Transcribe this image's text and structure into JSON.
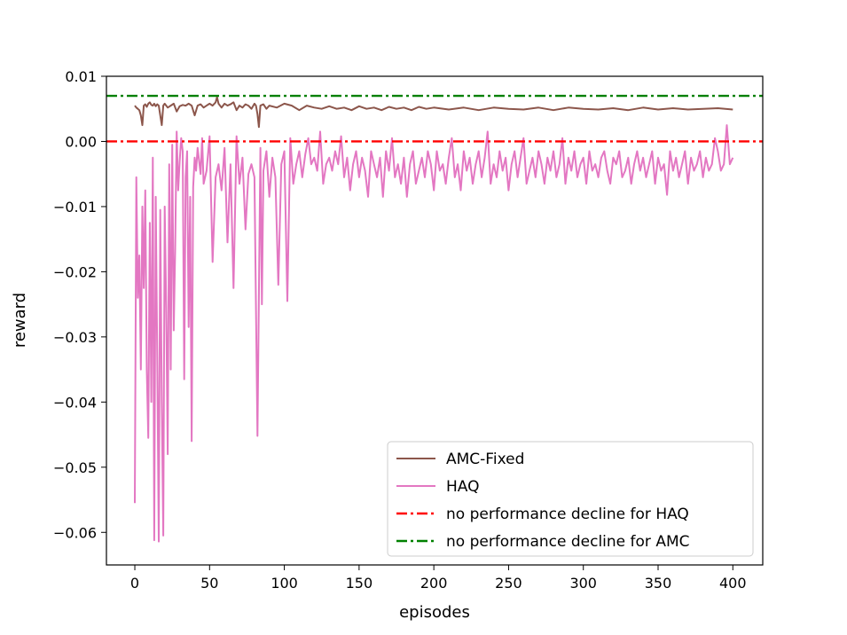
{
  "chart_data": {
    "type": "line",
    "title": "",
    "xlabel": "episodes",
    "ylabel": "reward",
    "xlim": [
      -19,
      420
    ],
    "ylim": [
      -0.065,
      0.01
    ],
    "xticks": [
      0,
      50,
      100,
      150,
      200,
      250,
      300,
      350,
      400
    ],
    "xtick_labels": [
      "0",
      "50",
      "100",
      "150",
      "200",
      "250",
      "300",
      "350",
      "400"
    ],
    "yticks": [
      0.01,
      0.0,
      -0.01,
      -0.02,
      -0.03,
      -0.04,
      -0.05,
      -0.06
    ],
    "ytick_labels": [
      "0.01",
      "0.00",
      "−0.01",
      "−0.02",
      "−0.03",
      "−0.04",
      "−0.05",
      "−0.06"
    ],
    "grid": false,
    "legend_position": "lower-right",
    "series": [
      {
        "name": "AMC-Fixed",
        "color": "#8c564b",
        "style": "solid",
        "x": [
          0,
          1,
          2,
          3,
          4,
          5,
          6,
          7,
          8,
          9,
          10,
          11,
          12,
          13,
          14,
          15,
          16,
          17,
          18,
          19,
          20,
          22,
          24,
          26,
          28,
          30,
          32,
          34,
          36,
          38,
          40,
          42,
          44,
          46,
          48,
          50,
          52,
          54,
          55,
          56,
          58,
          60,
          62,
          64,
          66,
          68,
          70,
          72,
          74,
          76,
          78,
          80,
          81,
          82,
          83,
          84,
          86,
          88,
          90,
          95,
          100,
          105,
          110,
          115,
          120,
          125,
          130,
          135,
          140,
          145,
          150,
          155,
          160,
          165,
          170,
          175,
          180,
          185,
          190,
          195,
          200,
          210,
          220,
          230,
          240,
          250,
          260,
          270,
          280,
          290,
          300,
          310,
          320,
          330,
          340,
          350,
          360,
          370,
          380,
          390,
          400
        ],
        "y": [
          0.0055,
          0.0052,
          0.005,
          0.0048,
          0.004,
          0.0025,
          0.0055,
          0.0057,
          0.0053,
          0.0058,
          0.006,
          0.0056,
          0.0055,
          0.0058,
          0.0054,
          0.0057,
          0.0055,
          0.004,
          0.0025,
          0.0055,
          0.0058,
          0.0052,
          0.0055,
          0.0058,
          0.0046,
          0.0054,
          0.0056,
          0.0055,
          0.0058,
          0.0055,
          0.004,
          0.0055,
          0.0057,
          0.0052,
          0.0055,
          0.0058,
          0.0055,
          0.006,
          0.0068,
          0.0058,
          0.0052,
          0.0058,
          0.0055,
          0.0057,
          0.006,
          0.0048,
          0.0055,
          0.0052,
          0.0057,
          0.0055,
          0.005,
          0.0058,
          0.0055,
          0.0042,
          0.0022,
          0.0055,
          0.0057,
          0.005,
          0.0055,
          0.0052,
          0.0058,
          0.0055,
          0.0048,
          0.0055,
          0.0052,
          0.005,
          0.0054,
          0.005,
          0.0052,
          0.0048,
          0.0054,
          0.005,
          0.0052,
          0.0048,
          0.0053,
          0.005,
          0.0052,
          0.0048,
          0.0053,
          0.005,
          0.0052,
          0.0049,
          0.0052,
          0.0048,
          0.0052,
          0.005,
          0.0049,
          0.0052,
          0.0048,
          0.0052,
          0.005,
          0.0049,
          0.0051,
          0.0048,
          0.0052,
          0.0049,
          0.0051,
          0.0049,
          0.005,
          0.0051,
          0.0049
        ]
      },
      {
        "name": "HAQ",
        "color": "#e377c2",
        "style": "solid",
        "x": [
          0,
          1,
          2,
          3,
          4,
          5,
          6,
          7,
          8,
          9,
          10,
          11,
          12,
          13,
          14,
          15,
          16,
          17,
          18,
          19,
          20,
          21,
          22,
          23,
          24,
          25,
          26,
          27,
          28,
          29,
          30,
          31,
          32,
          33,
          34,
          35,
          36,
          37,
          38,
          39,
          40,
          41,
          42,
          43,
          44,
          45,
          46,
          48,
          50,
          52,
          54,
          56,
          58,
          60,
          62,
          64,
          66,
          68,
          70,
          72,
          74,
          76,
          78,
          80,
          82,
          84,
          85,
          86,
          88,
          90,
          92,
          94,
          96,
          98,
          100,
          102,
          104,
          106,
          108,
          110,
          112,
          114,
          116,
          118,
          120,
          122,
          124,
          126,
          128,
          130,
          132,
          134,
          136,
          138,
          140,
          142,
          144,
          146,
          148,
          150,
          152,
          154,
          156,
          158,
          160,
          162,
          164,
          166,
          168,
          170,
          172,
          174,
          176,
          178,
          180,
          182,
          184,
          186,
          188,
          190,
          192,
          194,
          196,
          198,
          200,
          202,
          204,
          206,
          208,
          210,
          212,
          214,
          216,
          218,
          220,
          222,
          224,
          226,
          228,
          230,
          232,
          234,
          236,
          238,
          240,
          242,
          244,
          246,
          248,
          250,
          252,
          254,
          256,
          258,
          260,
          262,
          264,
          266,
          268,
          270,
          272,
          274,
          276,
          278,
          280,
          282,
          284,
          286,
          288,
          290,
          292,
          294,
          296,
          298,
          300,
          302,
          304,
          306,
          308,
          310,
          312,
          314,
          316,
          318,
          320,
          322,
          324,
          326,
          328,
          330,
          332,
          334,
          336,
          338,
          340,
          342,
          344,
          346,
          348,
          350,
          352,
          354,
          356,
          358,
          360,
          362,
          364,
          366,
          368,
          370,
          372,
          374,
          376,
          378,
          380,
          382,
          384,
          386,
          388,
          390,
          392,
          394,
          396,
          398,
          400
        ],
        "y": [
          -0.0555,
          -0.0055,
          -0.024,
          -0.0175,
          -0.035,
          -0.01,
          -0.0225,
          -0.0075,
          -0.035,
          -0.0455,
          -0.0125,
          -0.04,
          -0.0025,
          -0.0612,
          -0.0085,
          -0.033,
          -0.0614,
          -0.0105,
          -0.04,
          -0.0605,
          -0.01,
          -0.0255,
          -0.048,
          -0.0035,
          -0.035,
          -0.0005,
          -0.029,
          -0.0165,
          0.0015,
          -0.0075,
          -0.003,
          0.0005,
          -0.0015,
          -0.0365,
          -0.0055,
          -0.0015,
          -0.0285,
          -0.0085,
          -0.046,
          -0.007,
          -0.0025,
          -0.0045,
          -0.001,
          -0.003,
          -0.005,
          0.0005,
          -0.0065,
          -0.0045,
          0.0008,
          -0.0185,
          -0.0055,
          -0.0035,
          -0.0075,
          -0.001,
          -0.0155,
          -0.0035,
          -0.0225,
          0.0008,
          -0.0065,
          -0.0025,
          -0.0135,
          -0.005,
          -0.0035,
          -0.0055,
          -0.0452,
          -0.001,
          -0.025,
          -0.0045,
          -0.0015,
          -0.0085,
          -0.0025,
          -0.0055,
          -0.022,
          -0.0035,
          -0.0015,
          -0.0245,
          0.0005,
          -0.0065,
          -0.0035,
          -0.0015,
          -0.0055,
          -0.002,
          0.0005,
          -0.0035,
          -0.0025,
          -0.0045,
          0.0015,
          -0.0065,
          -0.0035,
          -0.0025,
          -0.0045,
          -0.0015,
          -0.0035,
          0.0008,
          -0.0055,
          -0.0025,
          -0.0075,
          -0.0035,
          -0.0015,
          -0.0055,
          -0.0025,
          -0.0045,
          -0.0085,
          -0.0015,
          -0.0035,
          -0.0055,
          -0.0025,
          -0.0085,
          -0.0015,
          -0.0045,
          0.0005,
          -0.0055,
          -0.0035,
          -0.0065,
          -0.0025,
          -0.0085,
          -0.0035,
          -0.0015,
          -0.0065,
          -0.0045,
          -0.0025,
          -0.0055,
          -0.0015,
          -0.0035,
          -0.0075,
          -0.0015,
          -0.0045,
          -0.0035,
          -0.0065,
          -0.0025,
          0.0005,
          -0.0055,
          -0.0035,
          -0.0075,
          -0.0015,
          -0.0045,
          -0.0025,
          -0.0065,
          -0.0035,
          -0.0015,
          -0.0055,
          -0.0025,
          0.0015,
          -0.0065,
          -0.0035,
          -0.0055,
          -0.0015,
          -0.0045,
          -0.0025,
          -0.0075,
          -0.0035,
          -0.0015,
          -0.0055,
          -0.0025,
          0.0005,
          -0.0065,
          -0.0045,
          -0.0025,
          -0.0055,
          -0.0015,
          -0.0035,
          -0.0065,
          -0.0025,
          -0.0045,
          -0.0015,
          -0.0055,
          -0.0035,
          0.0005,
          -0.0065,
          -0.0025,
          -0.0045,
          -0.0015,
          -0.0055,
          -0.0035,
          -0.0025,
          -0.0065,
          -0.0015,
          -0.0045,
          -0.0035,
          -0.0055,
          -0.0025,
          -0.0015,
          -0.0045,
          -0.0065,
          -0.0025,
          -0.0035,
          -0.0015,
          -0.0055,
          -0.0045,
          -0.0025,
          -0.0065,
          -0.0035,
          -0.0015,
          -0.0045,
          -0.0025,
          -0.0055,
          -0.0035,
          -0.0015,
          -0.0065,
          -0.0025,
          -0.0045,
          -0.0035,
          -0.0082,
          -0.0015,
          -0.0045,
          -0.0025,
          -0.0055,
          -0.0035,
          -0.0015,
          -0.0065,
          -0.0025,
          -0.0045,
          -0.0035,
          -0.0015,
          -0.0055,
          -0.0025,
          -0.0045,
          -0.0035,
          0.0005,
          -0.0015,
          -0.0045,
          -0.0035,
          0.0025,
          -0.0035,
          -0.0025
        ]
      },
      {
        "name": "no performance decline for HAQ",
        "color": "#ff0000",
        "style": "dashdot",
        "y_constant": 0.0
      },
      {
        "name": "no performance decline for AMC",
        "color": "#008000",
        "style": "dashdot",
        "y_constant": 0.007
      }
    ]
  }
}
